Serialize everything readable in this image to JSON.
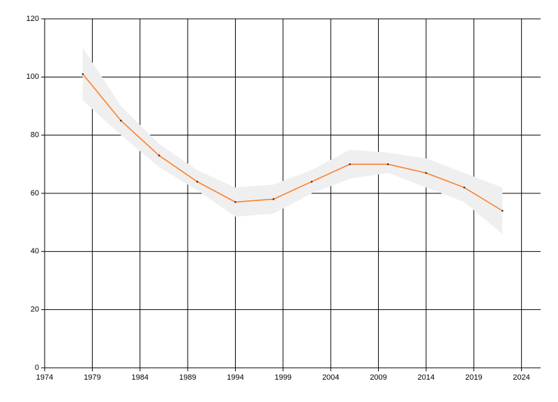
{
  "chart_data": {
    "type": "line",
    "x": [
      1978,
      1982,
      1986,
      1990,
      1994,
      1998,
      2002,
      2006,
      2010,
      2014,
      2018,
      2022
    ],
    "series": [
      {
        "color": "#ff7f2a",
        "values": [
          101,
          85,
          73,
          64,
          57,
          58,
          64,
          70,
          70,
          67,
          62,
          54
        ],
        "upper": [
          110,
          90,
          77,
          68,
          62,
          63,
          68,
          75,
          74,
          72,
          67,
          62
        ],
        "lower": [
          92,
          80,
          69,
          61,
          52,
          53,
          60,
          65,
          67,
          62,
          57,
          46
        ],
        "band_color": "#efefef"
      }
    ],
    "xlim": [
      1974,
      2026
    ],
    "xticks": [
      1974,
      1979,
      1984,
      1989,
      1994,
      1999,
      2004,
      2009,
      2014,
      2019,
      2024
    ],
    "ylim": [
      0,
      120
    ],
    "yticks": [
      0,
      20,
      40,
      60,
      80,
      100,
      120
    ],
    "grid": true
  }
}
